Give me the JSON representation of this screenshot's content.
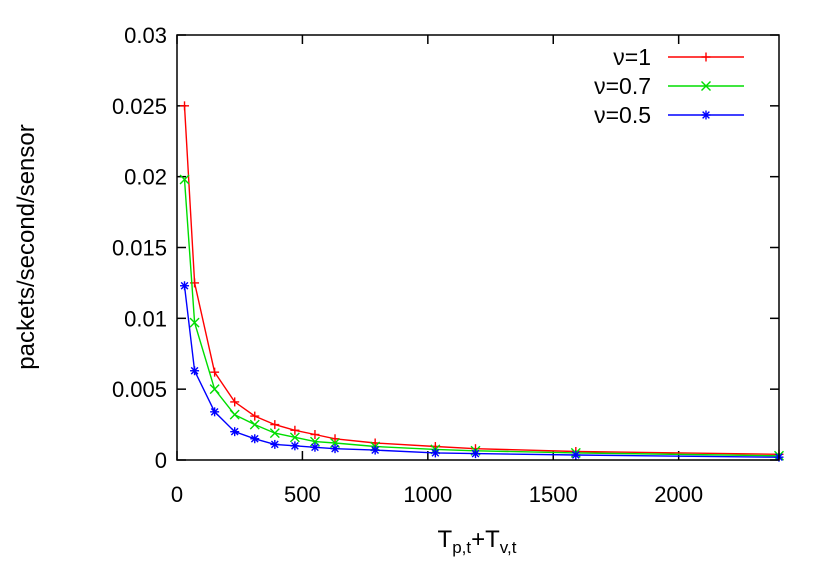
{
  "chart_data": {
    "type": "line",
    "xlabel": {
      "base1": "T",
      "sub1": "p,t",
      "plus": "+",
      "base2": "T",
      "sub2": "v,t"
    },
    "ylabel": "packets/second/sensor",
    "xlim": [
      0,
      2400
    ],
    "ylim": [
      0,
      0.03
    ],
    "x_ticks": [
      0,
      500,
      1000,
      1500,
      2000
    ],
    "x_tick_labels": [
      "0",
      "500",
      "1000",
      "1500",
      "2000"
    ],
    "y_ticks": [
      0,
      0.005,
      0.01,
      0.015,
      0.02,
      0.025,
      0.03
    ],
    "y_tick_labels": [
      "0",
      "0.005",
      "0.01",
      "0.015",
      "0.02",
      "0.025",
      "0.03"
    ],
    "grid": false,
    "legend_position": "top-right",
    "x": [
      30,
      70,
      150,
      230,
      310,
      390,
      470,
      550,
      630,
      790,
      1030,
      1190,
      1590,
      2400
    ],
    "series": [
      {
        "name": "ν=1",
        "color": "#ff0000",
        "marker": "plus",
        "values": [
          0.025,
          0.0125,
          0.0062,
          0.0041,
          0.0031,
          0.0025,
          0.0021,
          0.0018,
          0.0015,
          0.0012,
          0.00095,
          0.0008,
          0.0006,
          0.0004
        ]
      },
      {
        "name": "ν=0.7",
        "color": "#00dd00",
        "marker": "cross",
        "values": [
          0.0198,
          0.0097,
          0.005,
          0.0032,
          0.0025,
          0.0019,
          0.0016,
          0.0013,
          0.0012,
          0.00095,
          0.00075,
          0.00065,
          0.0005,
          0.0003
        ]
      },
      {
        "name": "ν=0.5",
        "color": "#0000ff",
        "marker": "star",
        "values": [
          0.0123,
          0.0063,
          0.0034,
          0.002,
          0.0015,
          0.0011,
          0.001,
          0.0009,
          0.0008,
          0.0007,
          0.0005,
          0.00045,
          0.00035,
          0.0002
        ]
      }
    ]
  }
}
